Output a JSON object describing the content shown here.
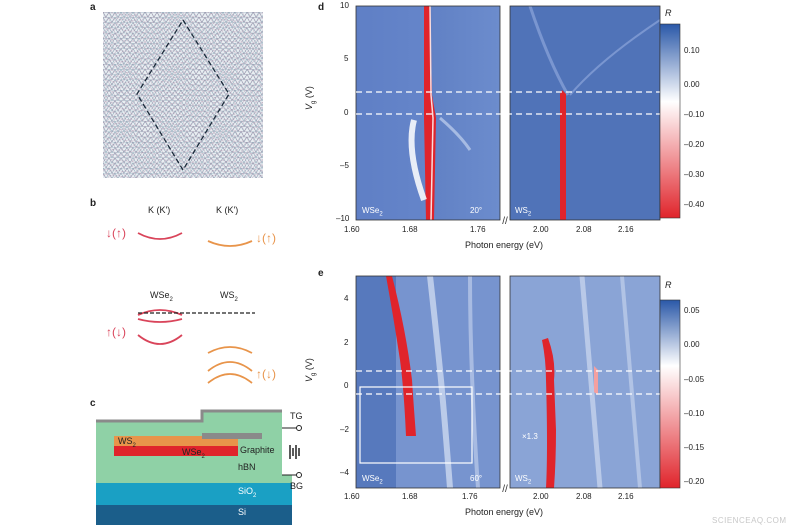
{
  "panels": {
    "a": "a",
    "b": "b",
    "c": "c",
    "d": "d",
    "e": "e"
  },
  "panel_b": {
    "label_k1": "K (K')",
    "label_k2": "K (K')",
    "label_wse2": "WSe",
    "label_ws2": "WS",
    "sub2": "2",
    "spin1": "↓(↑)",
    "spin2": "↓(↑)",
    "spin3": "↑(↓)",
    "spin4": "↑(↓)"
  },
  "panel_c": {
    "tg": "TG",
    "bg": "BG",
    "ws2": "WS",
    "wse2": "WSe",
    "sub2": "2",
    "graphite": "Graphite",
    "hbn": "hBN",
    "sio2": "SiO",
    "si": "Si"
  },
  "panel_d": {
    "ylabel": "V",
    "ylabel_sub": "g",
    "ylabel_unit": "(V)",
    "xlabel": "Photon energy (eV)",
    "left_tag": "WSe",
    "right_tag": "WS",
    "sub2": "2",
    "angle": "20°",
    "cbar_title": "R"
  },
  "panel_e": {
    "ylabel": "V",
    "ylabel_sub": "g",
    "ylabel_unit": "(V)",
    "xlabel": "Photon energy (eV)",
    "left_tag": "WSe",
    "right_tag": "WS",
    "sub2": "2",
    "angle": "60°",
    "scale": "×1.3",
    "cbar_title": "R"
  },
  "watermark": "SCIENCEAQ.COM",
  "colors": {
    "map_blue": "#4a6fb5",
    "red": "#e0242b",
    "orange": "#e8944a",
    "pink": "#d9445a",
    "hbn": "#8fd1a6",
    "sio2": "#1aa0c4",
    "si": "#1b5e8a"
  },
  "chart_data": [
    {
      "type": "heatmap",
      "panel": "d",
      "xlabel": "Photon energy (eV)",
      "ylabel": "Vg (V)",
      "y_ticks": [
        10,
        5,
        0,
        -5,
        -10
      ],
      "ylim": [
        -10,
        10
      ],
      "x_ticks_left": [
        "1.60",
        "1.68",
        "1.76"
      ],
      "x_ticks_right": [
        "2.00",
        "2.08",
        "2.16"
      ],
      "xlim_left": [
        1.6,
        1.78
      ],
      "xlim_right": [
        1.97,
        2.22
      ],
      "dashed_lines_vg": [
        2,
        0
      ],
      "colorbar": {
        "title": "R",
        "ticks": [
          "0.10",
          "0.00",
          "–0.10",
          "–0.20",
          "–0.30",
          "–0.40"
        ]
      },
      "annotations": [
        "WSe2",
        "WS2",
        "20°"
      ]
    },
    {
      "type": "heatmap",
      "panel": "e",
      "xlabel": "Photon energy (eV)",
      "ylabel": "Vg (V)",
      "y_ticks": [
        4,
        2,
        0,
        -2,
        -4
      ],
      "ylim": [
        -5,
        5
      ],
      "x_ticks_left": [
        "1.60",
        "1.68",
        "1.76"
      ],
      "x_ticks_right": [
        "2.00",
        "2.08",
        "2.16"
      ],
      "xlim_left": [
        1.6,
        1.78
      ],
      "xlim_right": [
        1.97,
        2.22
      ],
      "dashed_lines_vg": [
        0.7,
        -0.2
      ],
      "colorbar": {
        "title": "R",
        "ticks": [
          "0.05",
          "0.00",
          "–0.05",
          "–0.10",
          "–0.15",
          "–0.20"
        ]
      },
      "annotations": [
        "WSe2",
        "WS2",
        "60°",
        "×1.3"
      ]
    }
  ]
}
